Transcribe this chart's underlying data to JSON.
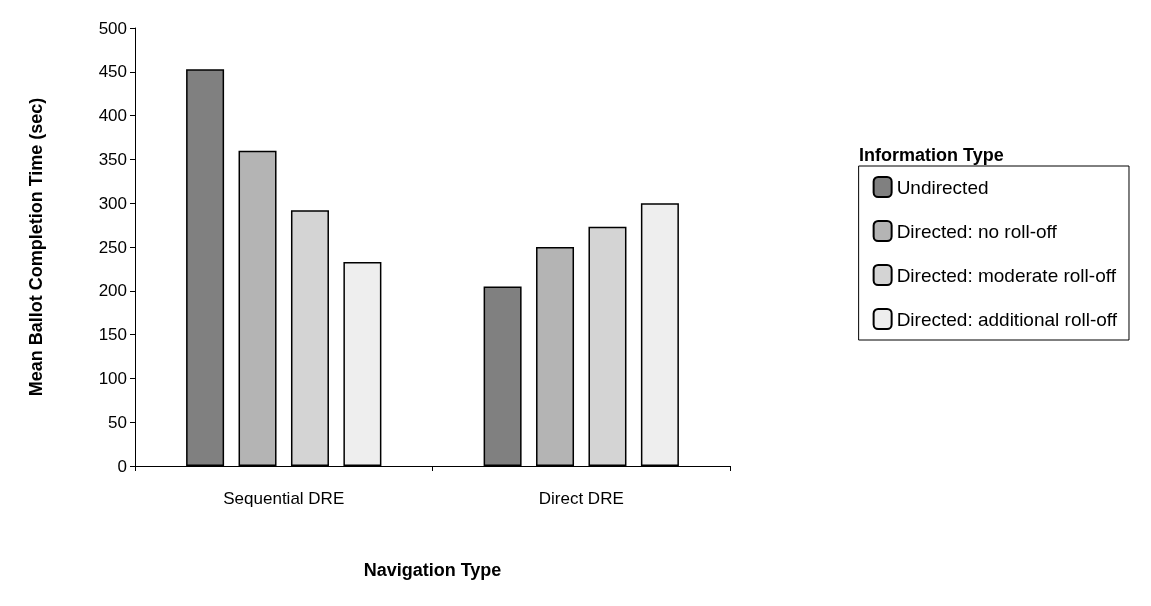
{
  "chart_data": {
    "type": "bar",
    "xlabel": "Navigation Type",
    "ylabel": "Mean Ballot Completion Time (sec)",
    "legend_title": "Information Type",
    "categories": [
      "Sequential DRE",
      "Direct DRE"
    ],
    "series": [
      {
        "name": "Undirected",
        "color": "#808080",
        "values": [
          453,
          205
        ]
      },
      {
        "name": "Directed: no roll-off",
        "color": "#b4b4b4",
        "values": [
          360,
          250
        ]
      },
      {
        "name": "Directed: moderate roll-off",
        "color": "#d4d4d4",
        "values": [
          292,
          273
        ]
      },
      {
        "name": "Directed: additional roll-off",
        "color": "#eeeeee",
        "values": [
          233,
          300
        ]
      }
    ],
    "ylim": [
      0,
      500
    ],
    "yticks": [
      0,
      50,
      100,
      150,
      200,
      250,
      300,
      350,
      400,
      450,
      500
    ],
    "grid": false,
    "legend": "right"
  }
}
